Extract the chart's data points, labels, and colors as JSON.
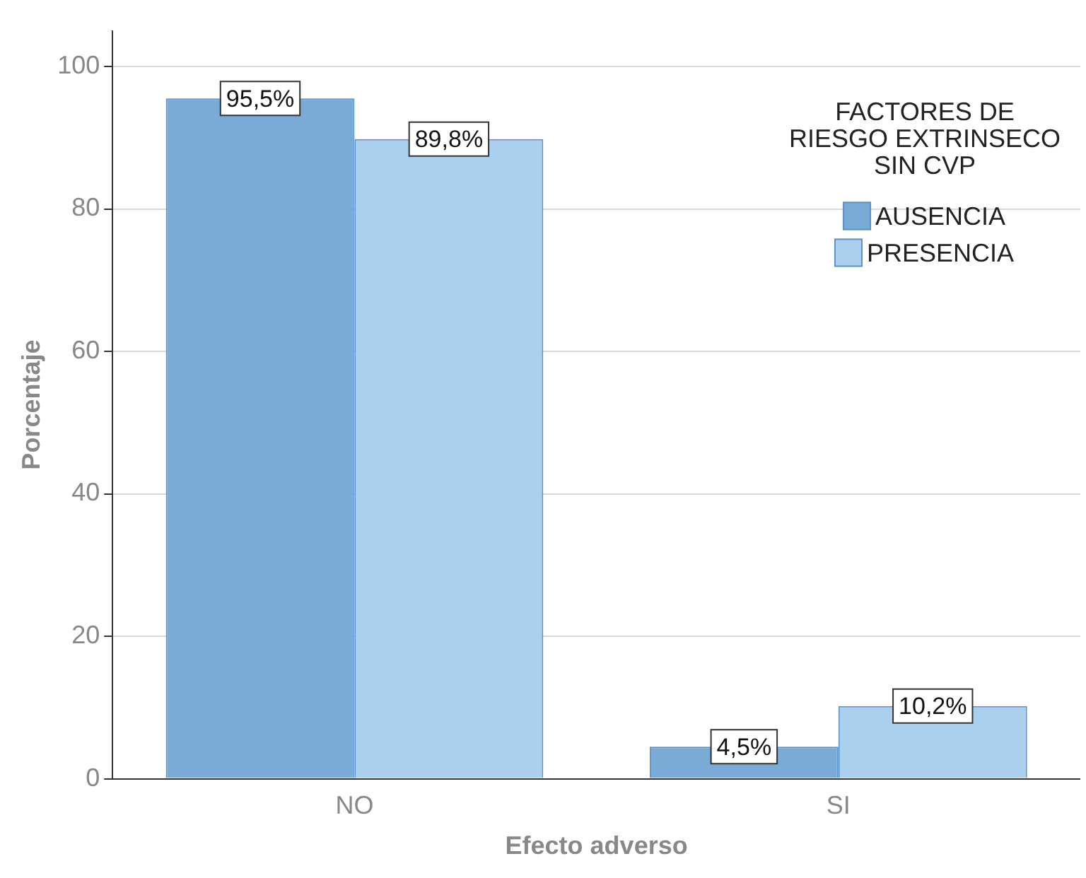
{
  "chart_data": {
    "type": "bar",
    "xlabel": "Efecto adverso",
    "ylabel": "Porcentaje",
    "legend_title": "FACTORES DE RIESGO EXTRINSECO SIN CVP",
    "categories": [
      "NO",
      "SI"
    ],
    "series": [
      {
        "name": "AUSENCIA",
        "color": "#7aaad6",
        "values": [
          95.5,
          4.5
        ],
        "value_labels": [
          "95,5%",
          "4,5%"
        ]
      },
      {
        "name": "PRESENCIA",
        "color": "#abd0ee",
        "values": [
          89.8,
          10.2
        ],
        "value_labels": [
          "89,8%",
          "10,2%"
        ]
      }
    ],
    "ylim": [
      0,
      105
    ],
    "yticks": [
      0,
      20,
      40,
      60,
      80,
      100
    ],
    "grid": "y",
    "legend": "top right"
  }
}
